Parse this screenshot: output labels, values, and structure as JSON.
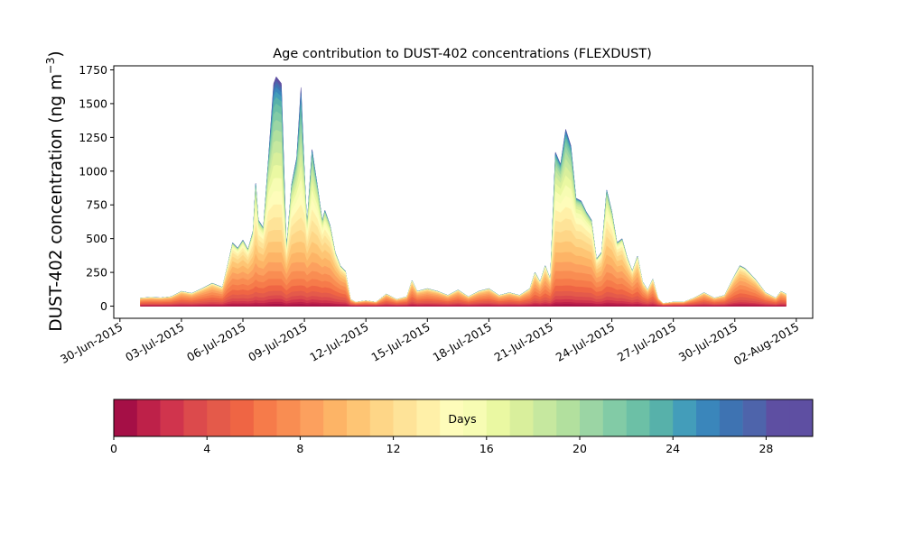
{
  "chart_data": {
    "type": "area",
    "title": "Age contribution to DUST-402 concentrations (FLEXDUST)",
    "ylabel_main": "DUST-402 concentration (ng m",
    "ylabel_sup": "−3",
    "ylabel_close": ")",
    "xlabel": "",
    "ylim": [
      -90,
      1780
    ],
    "xlim_days": [
      -0.3,
      33.8
    ],
    "x_ticks": [
      {
        "date": "2015-06-30",
        "label": "30-Jun-2015"
      },
      {
        "date": "2015-07-03",
        "label": "03-Jul-2015"
      },
      {
        "date": "2015-07-06",
        "label": "06-Jul-2015"
      },
      {
        "date": "2015-07-09",
        "label": "09-Jul-2015"
      },
      {
        "date": "2015-07-12",
        "label": "12-Jul-2015"
      },
      {
        "date": "2015-07-15",
        "label": "15-Jul-2015"
      },
      {
        "date": "2015-07-18",
        "label": "18-Jul-2015"
      },
      {
        "date": "2015-07-21",
        "label": "21-Jul-2015"
      },
      {
        "date": "2015-07-24",
        "label": "24-Jul-2015"
      },
      {
        "date": "2015-07-27",
        "label": "27-Jul-2015"
      },
      {
        "date": "2015-07-30",
        "label": "30-Jul-2015"
      },
      {
        "date": "2015-08-02",
        "label": "02-Aug-2015"
      }
    ],
    "y_ticks": [
      0,
      250,
      500,
      750,
      1000,
      1250,
      1500,
      1750
    ],
    "series_total": [
      [
        "2015-07-01T00",
        60
      ],
      [
        "2015-07-01T12",
        65
      ],
      [
        "2015-07-02T00",
        62
      ],
      [
        "2015-07-02T12",
        70
      ],
      [
        "2015-07-03T00",
        110
      ],
      [
        "2015-07-03T12",
        95
      ],
      [
        "2015-07-04T00",
        130
      ],
      [
        "2015-07-04T12",
        170
      ],
      [
        "2015-07-05T00",
        140
      ],
      [
        "2015-07-05T06",
        300
      ],
      [
        "2015-07-05T12",
        470
      ],
      [
        "2015-07-05T18",
        430
      ],
      [
        "2015-07-06T00",
        490
      ],
      [
        "2015-07-06T06",
        420
      ],
      [
        "2015-07-06T12",
        560
      ],
      [
        "2015-07-06T15",
        910
      ],
      [
        "2015-07-06T18",
        640
      ],
      [
        "2015-07-07T00",
        580
      ],
      [
        "2015-07-07T06",
        1100
      ],
      [
        "2015-07-07T12",
        1650
      ],
      [
        "2015-07-07T15",
        1700
      ],
      [
        "2015-07-07T21",
        1650
      ],
      [
        "2015-07-08T03",
        420
      ],
      [
        "2015-07-08T09",
        900
      ],
      [
        "2015-07-08T15",
        1100
      ],
      [
        "2015-07-08T20",
        1620
      ],
      [
        "2015-07-09T00",
        1000
      ],
      [
        "2015-07-09T03",
        600
      ],
      [
        "2015-07-09T09",
        1160
      ],
      [
        "2015-07-09T15",
        900
      ],
      [
        "2015-07-09T21",
        630
      ],
      [
        "2015-07-10T00",
        710
      ],
      [
        "2015-07-10T06",
        600
      ],
      [
        "2015-07-10T12",
        400
      ],
      [
        "2015-07-10T18",
        300
      ],
      [
        "2015-07-11T00",
        260
      ],
      [
        "2015-07-11T06",
        50
      ],
      [
        "2015-07-11T12",
        30
      ],
      [
        "2015-07-12T00",
        40
      ],
      [
        "2015-07-12T12",
        30
      ],
      [
        "2015-07-13T00",
        90
      ],
      [
        "2015-07-13T12",
        50
      ],
      [
        "2015-07-14T00",
        70
      ],
      [
        "2015-07-14T06",
        190
      ],
      [
        "2015-07-14T12",
        110
      ],
      [
        "2015-07-15T00",
        130
      ],
      [
        "2015-07-15T12",
        110
      ],
      [
        "2015-07-16T00",
        80
      ],
      [
        "2015-07-16T12",
        120
      ],
      [
        "2015-07-17T00",
        70
      ],
      [
        "2015-07-17T12",
        110
      ],
      [
        "2015-07-18T00",
        130
      ],
      [
        "2015-07-18T12",
        80
      ],
      [
        "2015-07-19T00",
        100
      ],
      [
        "2015-07-19T12",
        80
      ],
      [
        "2015-07-20T00",
        130
      ],
      [
        "2015-07-20T06",
        250
      ],
      [
        "2015-07-20T12",
        180
      ],
      [
        "2015-07-20T18",
        300
      ],
      [
        "2015-07-21T00",
        200
      ],
      [
        "2015-07-21T06",
        1140
      ],
      [
        "2015-07-21T12",
        1050
      ],
      [
        "2015-07-21T18",
        1310
      ],
      [
        "2015-07-22T00",
        1190
      ],
      [
        "2015-07-22T06",
        800
      ],
      [
        "2015-07-22T12",
        780
      ],
      [
        "2015-07-22T18",
        700
      ],
      [
        "2015-07-23T00",
        640
      ],
      [
        "2015-07-23T06",
        350
      ],
      [
        "2015-07-23T12",
        400
      ],
      [
        "2015-07-23T18",
        860
      ],
      [
        "2015-07-24T00",
        700
      ],
      [
        "2015-07-24T06",
        470
      ],
      [
        "2015-07-24T12",
        500
      ],
      [
        "2015-07-24T18",
        360
      ],
      [
        "2015-07-25T00",
        260
      ],
      [
        "2015-07-25T06",
        370
      ],
      [
        "2015-07-25T12",
        180
      ],
      [
        "2015-07-25T18",
        120
      ],
      [
        "2015-07-26T00",
        200
      ],
      [
        "2015-07-26T06",
        60
      ],
      [
        "2015-07-26T12",
        20
      ],
      [
        "2015-07-27T00",
        30
      ],
      [
        "2015-07-27T12",
        30
      ],
      [
        "2015-07-28T00",
        60
      ],
      [
        "2015-07-28T12",
        100
      ],
      [
        "2015-07-29T00",
        60
      ],
      [
        "2015-07-29T12",
        80
      ],
      [
        "2015-07-30T00",
        230
      ],
      [
        "2015-07-30T06",
        300
      ],
      [
        "2015-07-30T12",
        280
      ],
      [
        "2015-07-31T00",
        200
      ],
      [
        "2015-07-31T12",
        100
      ],
      [
        "2015-08-01T00",
        60
      ],
      [
        "2015-08-01T06",
        110
      ],
      [
        "2015-08-01T12",
        90
      ]
    ],
    "age_bins": [
      0,
      1,
      2,
      3,
      4,
      5,
      6,
      7,
      8,
      9,
      10,
      11,
      12,
      13,
      14,
      15,
      16,
      17,
      18,
      19,
      20,
      21,
      22,
      23,
      24,
      25,
      26,
      27,
      28,
      29,
      30
    ],
    "colorbar": {
      "label": "Days",
      "range": [
        0,
        30
      ],
      "ticks": [
        0,
        4,
        8,
        12,
        16,
        20,
        24,
        28
      ],
      "colors": [
        "#a50f46",
        "#be2149",
        "#d0344d",
        "#dc4a4c",
        "#e45a4a",
        "#ef6544",
        "#f67b4a",
        "#f98d52",
        "#fca05e",
        "#fdb466",
        "#fec574",
        "#fed687",
        "#fee398",
        "#fff0a8",
        "#fefcba",
        "#f7fcb3",
        "#eaf8a2",
        "#d9ef9c",
        "#c6e89f",
        "#b2e09e",
        "#9bd5a4",
        "#82cba6",
        "#6cc0a6",
        "#57b1aa",
        "#439dba",
        "#3a86bb",
        "#3e73b2",
        "#4e64ab",
        "#5e4fa2",
        "#5e4fa2"
      ]
    }
  }
}
